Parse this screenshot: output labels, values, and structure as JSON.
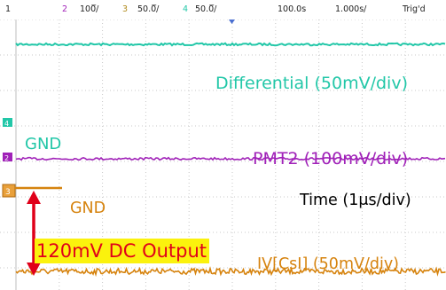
{
  "status_bar": {
    "channel_1": "1",
    "channel_2": "2",
    "channel_2_scale": "100̅/",
    "channel_3": "3",
    "channel_3_scale": "50.0̅/",
    "channel_4": "4",
    "channel_4_scale": "50.0̅/",
    "timebase": "100.0s",
    "time_scale": "1.000s/",
    "trigger_status": "Trig'd"
  },
  "annotations": {
    "differential": "Differential (50mV/div)",
    "pmt2": "PMT2 (100mV/div)",
    "time": "Time (1μs/div)",
    "iv": "IV[CsI] (50mV/div)",
    "gnd_green": "GND",
    "gnd_orange": "GND",
    "dc_output": "120mV DC Output"
  },
  "channel_markers": {
    "ch4": "4",
    "ch2": "2",
    "ch3": "3"
  },
  "colors": {
    "differential": "#22c7a8",
    "pmt2": "#a021b8",
    "iv": "#d6830e",
    "arrow": "#e0001a",
    "highlight": "#fbf20d",
    "grid": "#c8c8c8"
  }
}
